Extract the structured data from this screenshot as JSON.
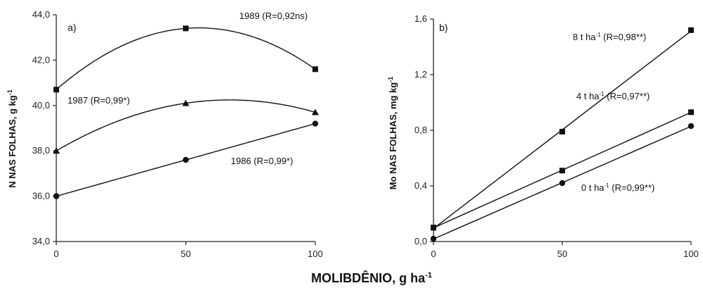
{
  "figure": {
    "xlabel_main": "MOLIBDÊNIO, g ha",
    "xlabel_sup": "-1"
  },
  "chart_data": [
    {
      "type": "line",
      "panel_label": "a)",
      "ylabel_main": "N NAS FOLHAS, g kg",
      "ylabel_sup": "-1",
      "x": [
        0,
        50,
        100
      ],
      "xticks": [
        "0",
        "50",
        "100"
      ],
      "xlim": [
        0,
        100
      ],
      "ylim": [
        34,
        44
      ],
      "yticks": [
        "34,0",
        "36,0",
        "38,0",
        "40,0",
        "42,0",
        "44,0"
      ],
      "series": [
        {
          "name": "1989 (R=0,92ns)",
          "marker": "square",
          "values": [
            40.7,
            43.4,
            41.6
          ]
        },
        {
          "name": "1987 (R=0,99*)",
          "marker": "triangle",
          "values": [
            38.0,
            40.1,
            39.7
          ]
        },
        {
          "name": "1986 (R=0,99*)",
          "marker": "circle",
          "values": [
            36.0,
            37.6,
            39.2
          ]
        }
      ]
    },
    {
      "type": "line",
      "panel_label": "b)",
      "ylabel_main": "Mo NAS FOLHAS, mg kg",
      "ylabel_sup": "-1",
      "x": [
        0,
        50,
        100
      ],
      "xticks": [
        "0",
        "50",
        "100"
      ],
      "xlim": [
        0,
        100
      ],
      "ylim": [
        0.0,
        1.6
      ],
      "yticks": [
        "0,0",
        "0,4",
        "0,8",
        "1,2",
        "1,6"
      ],
      "series": [
        {
          "name": "8 t ha-1 (R=0,98**)",
          "label_pre": "8 t ha",
          "label_sup": "-1",
          "label_post": " (R=0,98**)",
          "marker": "square",
          "values": [
            0.1,
            0.79,
            1.52
          ]
        },
        {
          "name": "4 t ha-1 (R=0,97**)",
          "label_pre": "4 t ha",
          "label_sup": "-1",
          "label_post": " (R=0,97**)",
          "marker": "square",
          "values": [
            0.1,
            0.51,
            0.93
          ]
        },
        {
          "name": "0 t ha-1 (R=0,99**)",
          "label_pre": "0 t ha",
          "label_sup": "-1",
          "label_post": " (R=0,99**)",
          "marker": "circle",
          "values": [
            0.02,
            0.42,
            0.83
          ]
        }
      ]
    }
  ]
}
